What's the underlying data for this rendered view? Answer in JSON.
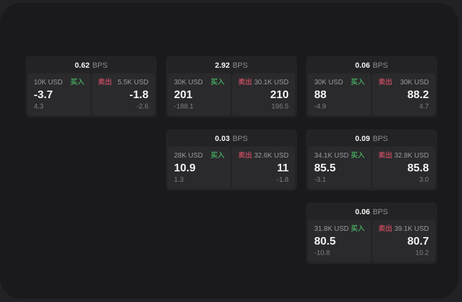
{
  "theme": {
    "outer_bg": "#222224",
    "panel_bg": "#1a1a1c",
    "card_bg": "#232325",
    "tile_bg": "#2a2a2d",
    "text_bright": "#f4f4f5",
    "text_label": "#9a9a9e",
    "text_dim": "#8d8d91",
    "text_delta": "#7e7e82",
    "accent_green": "#46a35c",
    "accent_red": "#b5495b"
  },
  "labels": {
    "bps_unit": "BPS",
    "buy": "买入",
    "sell": "卖出"
  },
  "cards": [
    {
      "bps": "0.62",
      "buy": {
        "size": "10K USD",
        "price": "-3.7",
        "delta": "4.3"
      },
      "sell": {
        "size": "5.5K USD",
        "price": "-1.8",
        "delta": "-2.6"
      }
    },
    {
      "bps": "2.92",
      "buy": {
        "size": "30K USD",
        "price": "201",
        "delta": "-188.1"
      },
      "sell": {
        "size": "30.1K USD",
        "price": "210",
        "delta": "196.5"
      }
    },
    {
      "bps": "0.03",
      "buy": {
        "size": "28K USD",
        "price": "10.9",
        "delta": "1.3"
      },
      "sell": {
        "size": "32.6K USD",
        "price": "11",
        "delta": "-1.8"
      }
    },
    {
      "bps": "0.06",
      "buy": {
        "size": "30K USD",
        "price": "88",
        "delta": "-4.9"
      },
      "sell": {
        "size": "30K USD",
        "price": "88.2",
        "delta": "4.7"
      }
    },
    {
      "bps": "0.09",
      "buy": {
        "size": "34.1K USD",
        "price": "85.5",
        "delta": "-3.1"
      },
      "sell": {
        "size": "32.8K USD",
        "price": "85.8",
        "delta": "3.0"
      }
    },
    {
      "bps": "0.06",
      "buy": {
        "size": "31.8K USD",
        "price": "80.5",
        "delta": "-10.8"
      },
      "sell": {
        "size": "39.1K USD",
        "price": "80.7",
        "delta": "10.2"
      }
    }
  ]
}
